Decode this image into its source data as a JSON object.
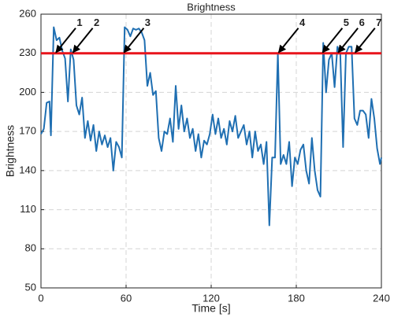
{
  "chart_data": {
    "type": "line",
    "title": "Brightness",
    "xlabel": "Time [s]",
    "ylabel": "Brightness",
    "xlim": [
      0,
      240
    ],
    "xticks": [
      0,
      60,
      120,
      180,
      240
    ],
    "ylim": [
      50,
      260
    ],
    "yticks": [
      50,
      80,
      110,
      140,
      170,
      200,
      230,
      260
    ],
    "grid": true,
    "hline": {
      "value": 230,
      "color": "#e8141b"
    },
    "series": [
      {
        "color": "#1f6fb2",
        "x": [
          0,
          2,
          4,
          6,
          7,
          9,
          11,
          13,
          15,
          17,
          19,
          21,
          23,
          25,
          27,
          29,
          31,
          33,
          35,
          37,
          39,
          41,
          43,
          45,
          47,
          49,
          51,
          53,
          55,
          57,
          59,
          61,
          63,
          65,
          67,
          69,
          71,
          73,
          75,
          77,
          79,
          81,
          83,
          85,
          87,
          89,
          91,
          93,
          95,
          97,
          99,
          101,
          103,
          105,
          107,
          109,
          111,
          113,
          115,
          117,
          119,
          121,
          123,
          125,
          127,
          129,
          131,
          133,
          135,
          137,
          139,
          141,
          143,
          145,
          147,
          149,
          151,
          153,
          155,
          157,
          159,
          161,
          163,
          165,
          167,
          169,
          171,
          173,
          175,
          177,
          179,
          181,
          183,
          185,
          187,
          189,
          191,
          193,
          195,
          197,
          199,
          201,
          203,
          205,
          207,
          209,
          211,
          213,
          215,
          217,
          219,
          221,
          223,
          225,
          227,
          229,
          231,
          233,
          235,
          237,
          239,
          240
        ],
        "values": [
          168,
          172,
          192,
          193,
          167,
          250,
          240,
          242,
          232,
          226,
          193,
          233,
          225,
          190,
          183,
          196,
          165,
          178,
          163,
          175,
          155,
          170,
          160,
          167,
          158,
          165,
          140,
          162,
          158,
          150,
          250,
          248,
          243,
          249,
          248,
          249,
          246,
          240,
          205,
          215,
          198,
          201,
          165,
          155,
          170,
          168,
          180,
          162,
          205,
          172,
          190,
          170,
          180,
          165,
          172,
          155,
          168,
          150,
          163,
          160,
          168,
          183,
          168,
          180,
          165,
          172,
          160,
          178,
          170,
          182,
          165,
          170,
          175,
          160,
          170,
          150,
          170,
          155,
          160,
          145,
          162,
          98,
          150,
          150,
          230,
          145,
          152,
          145,
          162,
          128,
          150,
          145,
          156,
          160,
          140,
          130,
          165,
          140,
          125,
          120,
          238,
          200,
          225,
          230,
          204,
          235,
          230,
          158,
          230,
          235,
          235,
          180,
          175,
          186,
          186,
          183,
          165,
          195,
          180,
          157,
          145,
          150
        ]
      }
    ],
    "annotations": [
      {
        "text": "1",
        "x": 10,
        "y": 230
      },
      {
        "text": "2",
        "x": 22,
        "y": 230
      },
      {
        "text": "3",
        "x": 58,
        "y": 230
      },
      {
        "text": "4",
        "x": 167,
        "y": 230
      },
      {
        "text": "5",
        "x": 198,
        "y": 230
      },
      {
        "text": "6",
        "x": 209,
        "y": 230
      },
      {
        "text": "7",
        "x": 221,
        "y": 230
      }
    ]
  }
}
